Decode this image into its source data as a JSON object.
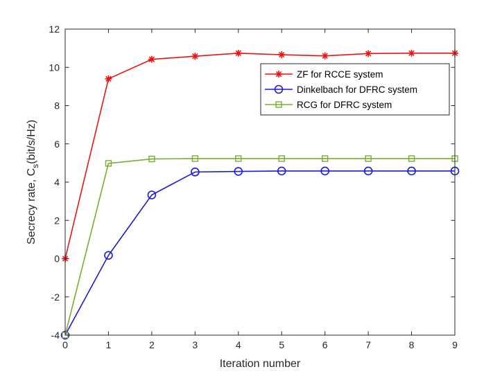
{
  "chart_data": {
    "type": "line",
    "title": "",
    "xlabel": "Iteration number",
    "ylabel": {
      "prefix": "Secrecy rate, C",
      "subscript": "s",
      "suffix": "(bit/s/Hz)"
    },
    "xlim": [
      0,
      9
    ],
    "ylim": [
      -4,
      12
    ],
    "xticks": [
      0,
      1,
      2,
      3,
      4,
      5,
      6,
      7,
      8,
      9
    ],
    "yticks": [
      -4,
      -2,
      0,
      2,
      4,
      6,
      8,
      10,
      12
    ],
    "xtick_labels": [
      "0",
      "1",
      "2",
      "3",
      "4",
      "5",
      "6",
      "7",
      "8",
      "9"
    ],
    "ytick_labels": [
      "-4",
      "-2",
      "0",
      "2",
      "4",
      "6",
      "8",
      "10",
      "12"
    ],
    "grid": false,
    "legend_position": "top-right",
    "x": [
      0,
      1,
      2,
      3,
      4,
      5,
      6,
      7,
      8,
      9
    ],
    "series": [
      {
        "name": "ZF for RCCE system",
        "color": "#ee1111",
        "marker": "asterisk",
        "values": [
          0,
          9.4,
          10.42,
          10.58,
          10.74,
          10.66,
          10.6,
          10.72,
          10.74,
          10.74
        ]
      },
      {
        "name": "Dinkelbach for DFRC system",
        "color": "#1a1ad6",
        "marker": "circle",
        "values": [
          -4,
          0.17,
          3.33,
          4.53,
          4.56,
          4.58,
          4.58,
          4.58,
          4.58,
          4.58
        ]
      },
      {
        "name": "RCG for DFRC system",
        "color": "#77ac30",
        "marker": "square",
        "values": [
          -4,
          4.98,
          5.21,
          5.23,
          5.23,
          5.23,
          5.23,
          5.23,
          5.23,
          5.23
        ]
      }
    ]
  }
}
